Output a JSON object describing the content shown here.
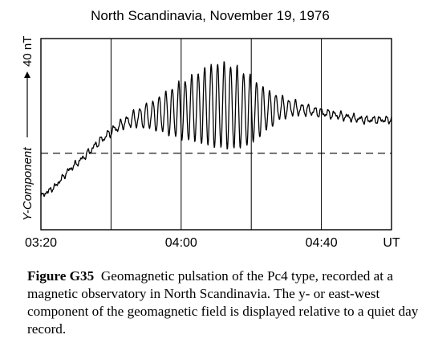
{
  "chart_data": {
    "type": "line",
    "title": "North Scandinavia,  November 19, 1976",
    "ylabel_component": "Y-Component",
    "ylabel_scale": "40 nT",
    "xunit_label": "UT",
    "xtick_labels": [
      "03:20",
      "04:00",
      "04:40"
    ],
    "xlim_minutes": [
      0,
      100
    ],
    "xtick_positions_minutes": [
      0,
      40,
      80
    ],
    "grid_lines_minutes": [
      20,
      40,
      60,
      80
    ],
    "ylim_nT": [
      0,
      80
    ],
    "quiet_day_baseline_nT": 32,
    "grid": "vertical",
    "series": [
      {
        "type": "envelope-oscillation",
        "description_from_axes": "Y component, nT relative to lower axis, time in minutes after 03:20 UT",
        "trend": {
          "x": [
            0,
            4,
            8,
            12,
            16,
            20,
            24,
            28,
            32,
            36,
            40,
            44,
            48,
            52,
            56,
            60,
            64,
            68,
            72,
            76,
            80,
            84,
            88,
            92,
            96,
            100
          ],
          "y": [
            14,
            18,
            25,
            30,
            36,
            41,
            45,
            47,
            48,
            49,
            50,
            51,
            52,
            52,
            51,
            50,
            50,
            51,
            51,
            50,
            49,
            48,
            47,
            46,
            46,
            46
          ]
        },
        "amplitude": {
          "x": [
            0,
            8,
            16,
            20,
            24,
            28,
            32,
            36,
            40,
            44,
            48,
            52,
            56,
            60,
            64,
            68,
            72,
            76,
            80,
            88,
            100
          ],
          "y": [
            0.5,
            0.8,
            1.2,
            1.5,
            2,
            4,
            6,
            9,
            12,
            14,
            17,
            18,
            17,
            14,
            9,
            5,
            3,
            2,
            1.5,
            1.2,
            1
          ]
        },
        "period_minutes": 1.85
      }
    ]
  },
  "caption": {
    "label": "Figure G35",
    "text": "Geomagnetic pulsation of the Pc4 type, recorded at a magnetic observatory in North Scandinavia. The y- or east-west component of the geomagnetic field is displayed relative to a quiet day record."
  }
}
